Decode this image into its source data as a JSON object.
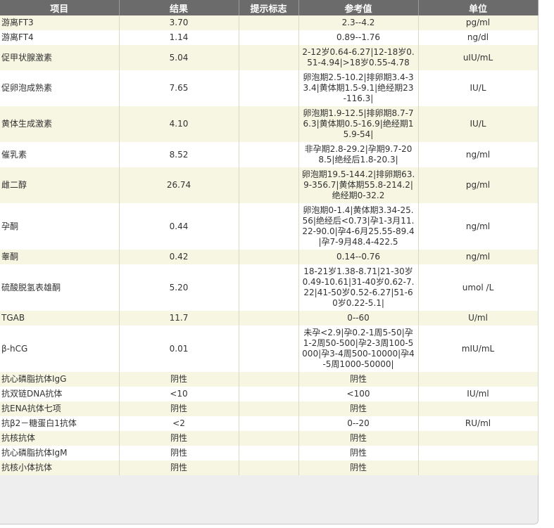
{
  "table": {
    "columns": [
      "项目",
      "结果",
      "提示标志",
      "参考值",
      "单位"
    ],
    "rows": [
      [
        "游离FT3",
        "3.70",
        null,
        "2.3--4.2",
        "pg/ml"
      ],
      [
        "游离FT4",
        "1.14",
        null,
        "0.89--1.76",
        "ng/dl"
      ],
      [
        "促甲状腺激素",
        "5.04",
        null,
        "2-12岁0.64-6.27|12-18岁0.51-4.94|>18岁0.55-4.78",
        "uIU/mL"
      ],
      [
        "促卵泡成熟素",
        "7.65",
        null,
        "卵泡期2.5-10.2|排卵期3.4-33.4|黄体期1.5-9.1|绝经期23-116.3|",
        "IU/L"
      ],
      [
        "黄体生成激素",
        "4.10",
        null,
        "卵泡期1.9-12.5|排卵期8.7-76.3|黄体期0.5-16.9|绝经期15.9-54|",
        "IU/L"
      ],
      [
        "催乳素",
        "8.52",
        null,
        "非孕期2.8-29.2|孕期9.7-208.5|绝经后1.8-20.3|",
        "ng/ml"
      ],
      [
        "雌二醇",
        "26.74",
        null,
        "卵泡期19.5-144.2|排卵期63.9-356.7|黄体期55.8-214.2|绝经期0-32.2",
        "pg/ml"
      ],
      [
        "孕酮",
        "0.44",
        null,
        "卵泡期0-1.4|黄体期3.34-25.56|绝经后<0.73|孕1-3月11.22-90.0|孕4-6月25.55-89.4|孕7-9月48.4-422.5",
        "ng/ml"
      ],
      [
        "睾酮",
        "0.42",
        null,
        "0.14--0.76",
        "ng/ml"
      ],
      [
        "硫酸脱氢表雄酮",
        "5.20",
        null,
        "18-21岁1.38-8.71|21-30岁0.49-10.61|31-40岁0.62-7.22|41-50岁0.52-6.27|51-60岁0.22-5.1|",
        "umol /L"
      ],
      [
        "TGAB",
        "11.7",
        null,
        "0--60",
        "U/ml"
      ],
      [
        "β-hCG",
        "0.01",
        null,
        "未孕<2.9|孕0.2-1周5-50|孕1-2周50-500|孕2-3周100-5000|孕3-4周500-10000|孕4-5周1000-50000|",
        "mIU/mL"
      ],
      [
        "抗心磷脂抗体IgG",
        "阴性",
        null,
        "阴性",
        null
      ],
      [
        "抗双链DNA抗体",
        "<10",
        null,
        "<100",
        "IU/ml"
      ],
      [
        "抗ENA抗体七项",
        "阴性",
        null,
        "阴性",
        null
      ],
      [
        "抗β2－糖蛋白1抗体",
        "<2",
        null,
        "0--20",
        "RU/ml"
      ],
      [
        "抗核抗体",
        "阴性",
        null,
        "阴性",
        null
      ],
      [
        "抗心磷脂抗体IgM",
        "阴性",
        null,
        "阴性",
        null
      ],
      [
        "抗核小体抗体",
        "阴性",
        null,
        "阴性",
        null
      ]
    ]
  }
}
